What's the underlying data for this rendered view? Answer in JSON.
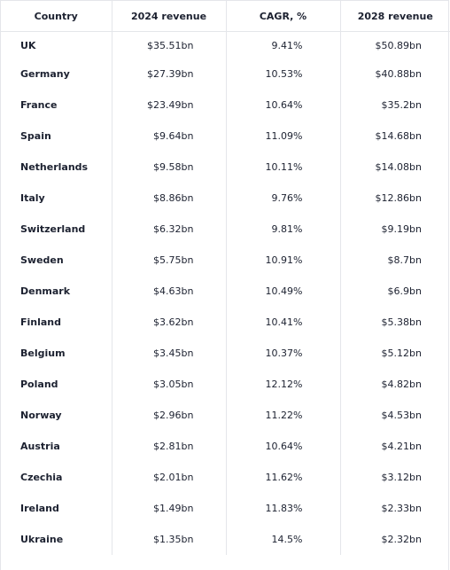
{
  "table": {
    "headers": [
      "Country",
      "2024 revenue",
      "CAGR, %",
      "2028 revenue"
    ],
    "rows": [
      {
        "country": "UK",
        "rev2024": "$35.51bn",
        "cagr": "9.41%",
        "rev2028": "$50.89bn"
      },
      {
        "country": "Germany",
        "rev2024": "$27.39bn",
        "cagr": "10.53%",
        "rev2028": "$40.88bn"
      },
      {
        "country": "France",
        "rev2024": "$23.49bn",
        "cagr": "10.64%",
        "rev2028": "$35.2bn"
      },
      {
        "country": "Spain",
        "rev2024": "$9.64bn",
        "cagr": "11.09%",
        "rev2028": "$14.68bn"
      },
      {
        "country": "Netherlands",
        "rev2024": "$9.58bn",
        "cagr": "10.11%",
        "rev2028": "$14.08bn"
      },
      {
        "country": "Italy",
        "rev2024": "$8.86bn",
        "cagr": "9.76%",
        "rev2028": "$12.86bn"
      },
      {
        "country": "Switzerland",
        "rev2024": "$6.32bn",
        "cagr": "9.81%",
        "rev2028": "$9.19bn"
      },
      {
        "country": "Sweden",
        "rev2024": "$5.75bn",
        "cagr": "10.91%",
        "rev2028": "$8.7bn"
      },
      {
        "country": "Denmark",
        "rev2024": "$4.63bn",
        "cagr": "10.49%",
        "rev2028": "$6.9bn"
      },
      {
        "country": "Finland",
        "rev2024": "$3.62bn",
        "cagr": "10.41%",
        "rev2028": "$5.38bn"
      },
      {
        "country": "Belgium",
        "rev2024": "$3.45bn",
        "cagr": "10.37%",
        "rev2028": "$5.12bn"
      },
      {
        "country": "Poland",
        "rev2024": "$3.05bn",
        "cagr": "12.12%",
        "rev2028": "$4.82bn"
      },
      {
        "country": "Norway",
        "rev2024": "$2.96bn",
        "cagr": "11.22%",
        "rev2028": "$4.53bn"
      },
      {
        "country": "Austria",
        "rev2024": "$2.81bn",
        "cagr": "10.64%",
        "rev2028": "$4.21bn"
      },
      {
        "country": "Czechia",
        "rev2024": "$2.01bn",
        "cagr": "11.62%",
        "rev2028": "$3.12bn"
      },
      {
        "country": "Ireland",
        "rev2024": "$1.49bn",
        "cagr": "11.83%",
        "rev2028": "$2.33bn"
      },
      {
        "country": "Ukraine",
        "rev2024": "$1.35bn",
        "cagr": "14.5%",
        "rev2028": "$2.32bn"
      }
    ]
  }
}
